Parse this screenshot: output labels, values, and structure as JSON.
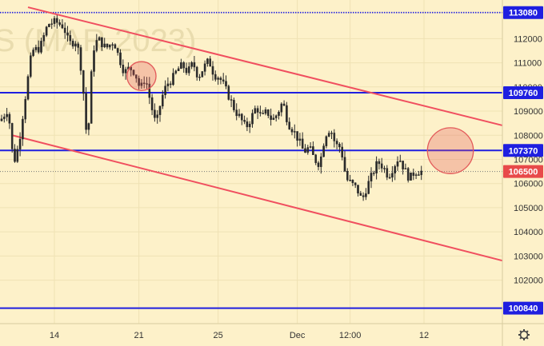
{
  "chart_data": {
    "type": "candlestick",
    "watermark": "S (MAR 2023)",
    "y_axis": {
      "range": [
        100200,
        113600
      ],
      "tick_labels": [
        "112000",
        "111000",
        "110000",
        "109000",
        "108000",
        "107000",
        "106000",
        "105000",
        "104000",
        "103000",
        "102000"
      ],
      "tick_values": [
        112000,
        111000,
        110000,
        109000,
        108000,
        107000,
        106000,
        105000,
        104000,
        103000,
        102000
      ]
    },
    "x_axis": {
      "tick_labels": [
        "14",
        "21",
        "25",
        "Dec",
        "12:00",
        "12"
      ],
      "tick_positions_bars": [
        20,
        52,
        82,
        112,
        132,
        160
      ]
    },
    "levels": [
      {
        "value": 113080,
        "label": "113080",
        "color": "#1f1fe0",
        "dotted": true
      },
      {
        "value": 109760,
        "label": "109760",
        "color": "#1f1fe0",
        "dotted": false
      },
      {
        "value": 107370,
        "label": "107370",
        "color": "#1f1fe0",
        "dotted": false
      },
      {
        "value": 100840,
        "label": "100840",
        "color": "#1f1fe0",
        "dotted": false
      }
    ],
    "last_price": {
      "value": 106500,
      "label": "106500",
      "color": "#e84a4a"
    },
    "trendlines": [
      {
        "from": {
          "bar": 10,
          "price": 113300
        },
        "to": {
          "bar": 190,
          "price": 108400
        },
        "color": "#f04f5f"
      },
      {
        "from": {
          "bar": 4,
          "price": 108000
        },
        "to": {
          "bar": 190,
          "price": 102800
        },
        "color": "#f04f5f"
      }
    ],
    "circles": [
      {
        "bar": 53,
        "price": 110450,
        "radius_price": 600,
        "color": "#e35a5a"
      },
      {
        "bar": 170,
        "price": 107360,
        "radius_price": 950,
        "color": "#e35a5a"
      }
    ],
    "colors": {
      "background": "#fdf1c9",
      "grid": "#efe2b4",
      "up": "#2a2a2a",
      "down": "#2a2a2a",
      "axis_border": "#d8cc9e"
    },
    "series_anchors": [
      [
        0,
        108600
      ],
      [
        3,
        109100
      ],
      [
        5,
        106800
      ],
      [
        7,
        107600
      ],
      [
        10,
        110000
      ],
      [
        12,
        111500
      ],
      [
        15,
        111600
      ],
      [
        18,
        112600
      ],
      [
        21,
        112700
      ],
      [
        24,
        112500
      ],
      [
        26,
        111800
      ],
      [
        29,
        111900
      ],
      [
        31,
        110500
      ],
      [
        33,
        107500
      ],
      [
        35,
        111500
      ],
      [
        37,
        112000
      ],
      [
        40,
        111600
      ],
      [
        43,
        111900
      ],
      [
        45,
        111200
      ],
      [
        47,
        110600
      ],
      [
        49,
        110800
      ],
      [
        51,
        110600
      ],
      [
        53,
        109900
      ],
      [
        55,
        110400
      ],
      [
        57,
        109300
      ],
      [
        59,
        108400
      ],
      [
        61,
        109500
      ],
      [
        63,
        110100
      ],
      [
        65,
        110300
      ],
      [
        67,
        110700
      ],
      [
        69,
        110900
      ],
      [
        71,
        110600
      ],
      [
        73,
        111000
      ],
      [
        75,
        110400
      ],
      [
        77,
        110800
      ],
      [
        79,
        111100
      ],
      [
        81,
        110500
      ],
      [
        83,
        110400
      ],
      [
        85,
        110000
      ],
      [
        87,
        109500
      ],
      [
        89,
        109000
      ],
      [
        91,
        108700
      ],
      [
        93,
        108300
      ],
      [
        95,
        108700
      ],
      [
        97,
        109200
      ],
      [
        99,
        108700
      ],
      [
        101,
        109000
      ],
      [
        103,
        108600
      ],
      [
        105,
        108900
      ],
      [
        107,
        109400
      ],
      [
        109,
        108500
      ],
      [
        111,
        108200
      ],
      [
        113,
        107800
      ],
      [
        115,
        107300
      ],
      [
        117,
        107500
      ],
      [
        119,
        107000
      ],
      [
        121,
        106800
      ],
      [
        123,
        108000
      ],
      [
        125,
        108300
      ],
      [
        127,
        107600
      ],
      [
        129,
        107500
      ],
      [
        131,
        106200
      ],
      [
        133,
        106000
      ],
      [
        135,
        105800
      ],
      [
        137,
        105300
      ],
      [
        139,
        105900
      ],
      [
        141,
        106400
      ],
      [
        143,
        106900
      ],
      [
        145,
        106700
      ],
      [
        147,
        106300
      ],
      [
        149,
        106700
      ],
      [
        151,
        107100
      ],
      [
        153,
        106600
      ],
      [
        155,
        106200
      ],
      [
        157,
        106500
      ],
      [
        159,
        106500
      ]
    ]
  }
}
